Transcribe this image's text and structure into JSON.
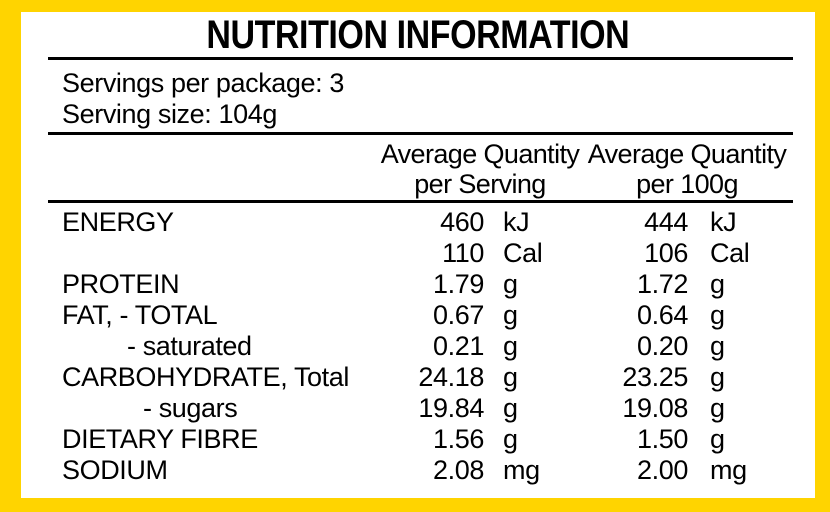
{
  "title": "NUTRITION INFORMATION",
  "package_info": {
    "servings_per_package": "Servings per package: 3",
    "serving_size": "Serving size: 104g"
  },
  "columns": {
    "per_serving": {
      "line1": "Average Quantity",
      "line2": "per Serving"
    },
    "per_100g": {
      "line1": "Average Quantity",
      "line2": "per 100g"
    }
  },
  "rows": [
    {
      "label": "ENERGY",
      "per_serving": "460",
      "per_serving_unit": "kJ",
      "per_100g": "444",
      "per_100g_unit": "kJ"
    },
    {
      "label": "",
      "per_serving": "110",
      "per_serving_unit": "Cal",
      "per_100g": "106",
      "per_100g_unit": "Cal"
    },
    {
      "label": "PROTEIN",
      "per_serving": "1.79",
      "per_serving_unit": "g",
      "per_100g": "1.72",
      "per_100g_unit": "g"
    },
    {
      "label": "FAT, - TOTAL",
      "per_serving": "0.67",
      "per_serving_unit": "g",
      "per_100g": "0.64",
      "per_100g_unit": "g"
    },
    {
      "label": "- saturated",
      "per_serving": "0.21",
      "per_serving_unit": "g",
      "per_100g": "0.20",
      "per_100g_unit": "g"
    },
    {
      "label": "CARBOHYDRATE, Total",
      "per_serving": "24.18",
      "per_serving_unit": "g",
      "per_100g": "23.25",
      "per_100g_unit": "g"
    },
    {
      "label": "- sugars",
      "per_serving": "19.84",
      "per_serving_unit": "g",
      "per_100g": "19.08",
      "per_100g_unit": "g"
    },
    {
      "label": "DIETARY FIBRE",
      "per_serving": "1.56",
      "per_serving_unit": "g",
      "per_100g": "1.50",
      "per_100g_unit": "g"
    },
    {
      "label": "SODIUM",
      "per_serving": "2.08",
      "per_serving_unit": "mg",
      "per_100g": "2.00",
      "per_100g_unit": "mg"
    }
  ],
  "colors": {
    "border": "#FFD400",
    "panel_background": "#FFFFFF",
    "text": "#000000"
  }
}
